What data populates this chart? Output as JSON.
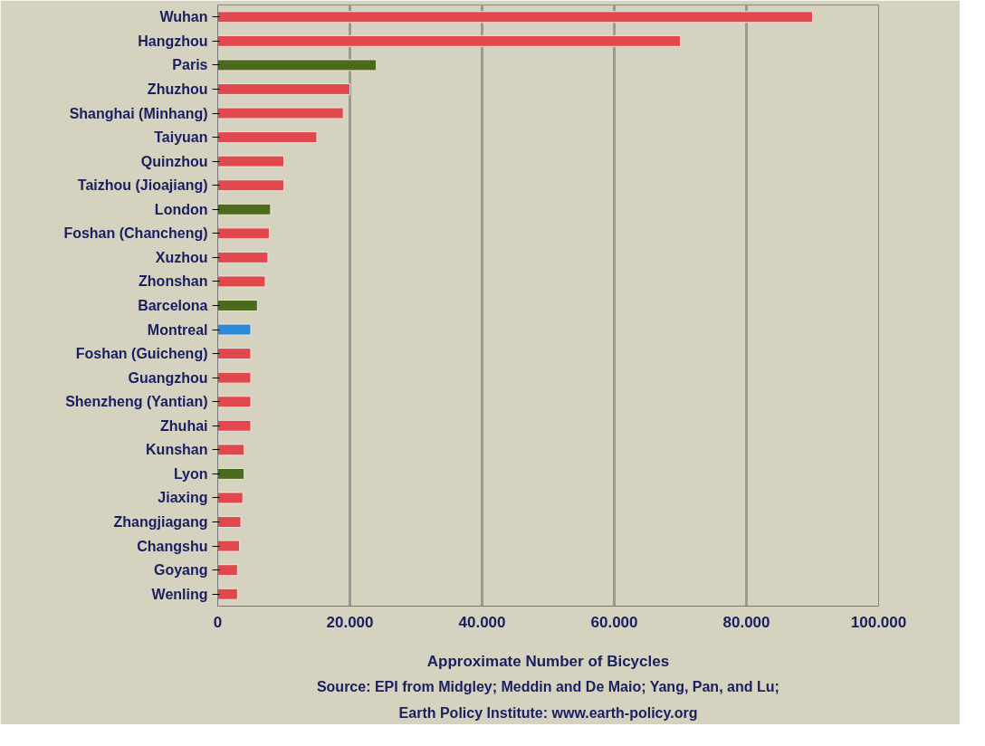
{
  "chart_data": {
    "type": "bar",
    "orientation": "horizontal",
    "xlabel": "Approximate Number of Bicycles",
    "categories": [
      "Wuhan",
      "Hangzhou",
      "Paris",
      "Zhuzhou",
      "Shanghai (Minhang)",
      "Taiyuan",
      "Quinzhou",
      "Taizhou (Jioajiang)",
      "London",
      "Foshan (Chancheng)",
      "Xuzhou",
      "Zhonshan",
      "Barcelona",
      "Montreal",
      "Foshan (Guicheng)",
      "Guangzhou",
      "Shenzheng (Yantian)",
      "Zhuhai",
      "Kunshan",
      "Lyon",
      "Jiaxing",
      "Zhangjiagang",
      "Changshu",
      "Goyang",
      "Wenling"
    ],
    "values": [
      90000,
      70000,
      24000,
      20000,
      19000,
      15000,
      10000,
      10000,
      8000,
      7800,
      7600,
      7200,
      6000,
      5000,
      5000,
      5000,
      5000,
      5000,
      4000,
      4000,
      3800,
      3500,
      3300,
      3000,
      3000
    ],
    "colors": [
      "#e0484c",
      "#e0484c",
      "#4a6a1e",
      "#e0484c",
      "#e0484c",
      "#e0484c",
      "#e0484c",
      "#e0484c",
      "#4a6a1e",
      "#e0484c",
      "#e0484c",
      "#e0484c",
      "#4a6a1e",
      "#2a8ad8",
      "#e0484c",
      "#e0484c",
      "#e0484c",
      "#e0484c",
      "#e0484c",
      "#4a6a1e",
      "#e0484c",
      "#e0484c",
      "#e0484c",
      "#e0484c",
      "#e0484c"
    ],
    "xlim": [
      0,
      100000
    ],
    "xticks": [
      0,
      {
        "value": 20000,
        "label": "20.000"
      },
      {
        "value": 40000,
        "label": "40.000"
      },
      {
        "value": 60000,
        "label": "60.000"
      },
      {
        "value": 80000,
        "label": "80.000"
      },
      {
        "value": 100000,
        "label": "100.000"
      }
    ],
    "grid": "x",
    "annotations": [
      "Source: EPI from Midgley; Meddin and De Maio; Yang, Pan, and Lu;",
      "Earth Policy Institute: www.earth-policy.org"
    ]
  }
}
